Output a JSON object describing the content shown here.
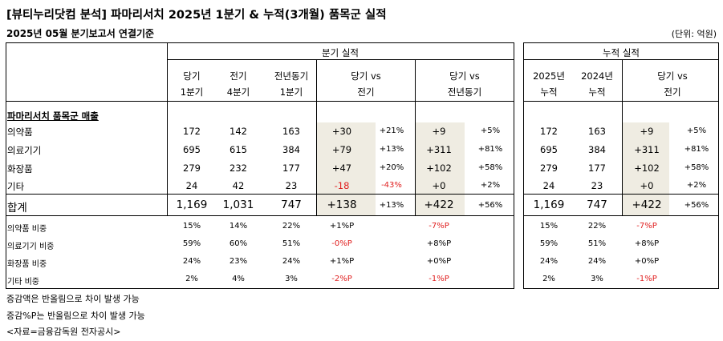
{
  "title": "[뷰티누리닷컴 분석] 파마리서치 2025년 1분기 & 누적(3개월) 품목군 실적",
  "subtitle": "2025년 05월 분기보고서 연결기준",
  "unit": "(단위: 억원)",
  "groups": {
    "quarter": "분기 실적",
    "cumulative": "누적 실적"
  },
  "columns": {
    "cur": [
      "당기",
      "1분기"
    ],
    "prev": [
      "전기",
      "4분기"
    ],
    "yoy": [
      "전년동기",
      "1분기"
    ],
    "vs_prev": [
      "당기 vs",
      "전기"
    ],
    "vs_yoy": [
      "당기 vs",
      "전년동기"
    ],
    "cum_cur": [
      "2025년",
      "누적"
    ],
    "cum_prev": [
      "2024년",
      "누적"
    ],
    "cum_vs": [
      "당기 vs",
      "전기"
    ]
  },
  "section_label": "파마리서치 품목군 매출",
  "rows": [
    {
      "label": "의약품",
      "cur": "172",
      "prev": "142",
      "yoy": "163",
      "d1": "+30",
      "p1": "+21%",
      "d2": "+9",
      "p2": "+5%",
      "c1": "172",
      "c2": "163",
      "d3": "+9",
      "p3": "+5%"
    },
    {
      "label": "의료기기",
      "cur": "695",
      "prev": "615",
      "yoy": "384",
      "d1": "+79",
      "p1": "+13%",
      "d2": "+311",
      "p2": "+81%",
      "c1": "695",
      "c2": "384",
      "d3": "+311",
      "p3": "+81%"
    },
    {
      "label": "화장품",
      "cur": "279",
      "prev": "232",
      "yoy": "177",
      "d1": "+47",
      "p1": "+20%",
      "d2": "+102",
      "p2": "+58%",
      "c1": "279",
      "c2": "177",
      "d3": "+102",
      "p3": "+58%"
    },
    {
      "label": "기타",
      "cur": "24",
      "prev": "42",
      "yoy": "23",
      "d1": "-18",
      "p1": "-43%",
      "d2": "+0",
      "p2": "+2%",
      "c1": "24",
      "c2": "23",
      "d3": "+0",
      "p3": "+2%"
    }
  ],
  "total": {
    "label": "합계",
    "cur": "1,169",
    "prev": "1,031",
    "yoy": "747",
    "d1": "+138",
    "p1": "+13%",
    "d2": "+422",
    "p2": "+56%",
    "c1": "1,169",
    "c2": "747",
    "d3": "+422",
    "p3": "+56%"
  },
  "ratios": [
    {
      "label": "의약품 비중",
      "cur": "15%",
      "prev": "14%",
      "yoy": "22%",
      "d1": "+1%P",
      "d2": "-7%P",
      "c1": "15%",
      "c2": "22%",
      "d3": "-7%P"
    },
    {
      "label": "의료기기 비중",
      "cur": "59%",
      "prev": "60%",
      "yoy": "51%",
      "d1": "-0%P",
      "d2": "+8%P",
      "c1": "59%",
      "c2": "51%",
      "d3": "+8%P"
    },
    {
      "label": "화장품 비중",
      "cur": "24%",
      "prev": "23%",
      "yoy": "24%",
      "d1": "+1%P",
      "d2": "+0%P",
      "c1": "24%",
      "c2": "24%",
      "d3": "+0%P"
    },
    {
      "label": "기타 비중",
      "cur": "2%",
      "prev": "4%",
      "yoy": "3%",
      "d1": "-2%P",
      "d2": "-1%P",
      "c1": "2%",
      "c2": "3%",
      "d3": "-1%P"
    }
  ],
  "notes": [
    "증감액은 반올림으로 차이 발생 가능",
    "증감%P는 반올림으로 차이 발생 가능",
    "<자료=금융감독원 전자공시>"
  ],
  "colors": {
    "negative": "#e02020",
    "highlight": "#efece2"
  }
}
